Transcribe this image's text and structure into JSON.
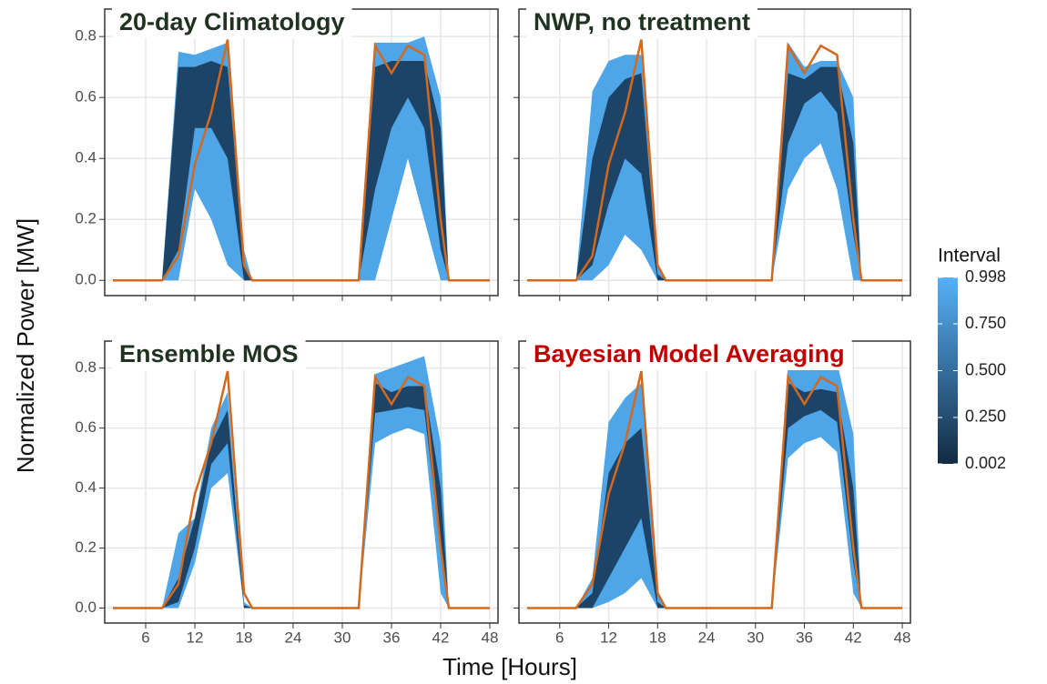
{
  "chart_data": {
    "type": "fan",
    "y_label": "Normalized Power [MW]",
    "x_label": "Time [Hours]",
    "x": [
      2,
      8,
      10,
      12,
      14,
      16,
      18,
      19,
      32,
      34,
      36,
      38,
      40,
      42,
      43,
      48
    ],
    "xlim": [
      1,
      49
    ],
    "xticks": [
      6,
      12,
      18,
      24,
      30,
      36,
      42,
      48
    ],
    "ylim": [
      -0.05,
      0.89
    ],
    "yticks": [
      {
        "value": 0,
        "label": "0.0"
      },
      {
        "value": 0.2,
        "label": "0.2"
      },
      {
        "value": 0.4,
        "label": "0.4"
      },
      {
        "value": 0.6,
        "label": "0.6"
      },
      {
        "value": 0.8,
        "label": "0.8"
      }
    ],
    "grid": true,
    "legend": {
      "title": "Interval",
      "colors": [
        "#132B43",
        "#56B1F7"
      ],
      "range": [
        0.002,
        0.998
      ],
      "ticks": [
        0.002,
        {
          "value": 0.25,
          "label": "0.250"
        },
        {
          "value": 0.5,
          "label": "0.500"
        },
        {
          "value": 0.75,
          "label": "0.750"
        },
        0.998
      ]
    },
    "panels": [
      {
        "title": "20-day Climatology",
        "title_color": "#1f3320",
        "bands": [
          {
            "color": "#4ea6e8",
            "upper": [
              0,
              0,
              0.75,
              0.74,
              0.76,
              0.78,
              0.1,
              0,
              0,
              0.78,
              0.78,
              0.78,
              0.8,
              0.6,
              0,
              0
            ],
            "lower": [
              0,
              0,
              0,
              0.3,
              0.2,
              0.05,
              0,
              0,
              0,
              0,
              0.2,
              0.4,
              0.2,
              0,
              0,
              0
            ]
          },
          {
            "color": "#1d4466",
            "upper": [
              0,
              0,
              0.7,
              0.7,
              0.72,
              0.7,
              0.05,
              0,
              0,
              0.7,
              0.72,
              0.72,
              0.72,
              0.5,
              0,
              0
            ],
            "lower": [
              0,
              0,
              0.1,
              0.5,
              0.5,
              0.4,
              0,
              0,
              0,
              0.3,
              0.5,
              0.6,
              0.5,
              0.1,
              0,
              0
            ]
          }
        ],
        "observed": {
          "color": "#d2691e",
          "values": [
            0,
            0,
            0.08,
            0.38,
            0.55,
            0.79,
            0.05,
            0,
            0,
            0.77,
            0.68,
            0.77,
            0.74,
            0.2,
            0,
            0
          ]
        }
      },
      {
        "title": "NWP, no treatment",
        "title_color": "#1f3320",
        "bands": [
          {
            "color": "#4ea6e8",
            "upper": [
              0,
              0,
              0.62,
              0.72,
              0.74,
              0.74,
              0.05,
              0,
              0,
              0.78,
              0.7,
              0.72,
              0.72,
              0.6,
              0,
              0
            ],
            "lower": [
              0,
              0,
              0,
              0.05,
              0.15,
              0.1,
              0,
              0,
              0,
              0.3,
              0.4,
              0.45,
              0.3,
              0,
              0,
              0
            ]
          },
          {
            "color": "#1d4466",
            "upper": [
              0,
              0,
              0.4,
              0.6,
              0.66,
              0.68,
              0.02,
              0,
              0,
              0.68,
              0.66,
              0.7,
              0.7,
              0.45,
              0,
              0
            ],
            "lower": [
              0,
              0,
              0.05,
              0.25,
              0.4,
              0.35,
              0,
              0,
              0,
              0.45,
              0.58,
              0.62,
              0.55,
              0.15,
              0,
              0
            ]
          }
        ],
        "observed": {
          "color": "#d2691e",
          "values": [
            0,
            0,
            0.08,
            0.38,
            0.55,
            0.79,
            0.05,
            0,
            0,
            0.77,
            0.68,
            0.77,
            0.74,
            0.2,
            0,
            0
          ]
        }
      },
      {
        "title": "Ensemble MOS",
        "title_color": "#1f3320",
        "bands": [
          {
            "color": "#4ea6e8",
            "upper": [
              0,
              0,
              0.25,
              0.3,
              0.6,
              0.72,
              0.02,
              0,
              0,
              0.78,
              0.8,
              0.82,
              0.84,
              0.55,
              0,
              0
            ],
            "lower": [
              0,
              0,
              0,
              0.15,
              0.4,
              0.45,
              0,
              0,
              0,
              0.55,
              0.58,
              0.6,
              0.58,
              0.05,
              0,
              0
            ]
          },
          {
            "color": "#1d4466",
            "upper": [
              0,
              0,
              0.1,
              0.3,
              0.55,
              0.66,
              0.01,
              0,
              0,
              0.75,
              0.72,
              0.74,
              0.74,
              0.4,
              0,
              0
            ],
            "lower": [
              0,
              0,
              0.02,
              0.2,
              0.48,
              0.55,
              0,
              0,
              0,
              0.65,
              0.66,
              0.67,
              0.66,
              0.2,
              0,
              0
            ]
          }
        ],
        "observed": {
          "color": "#d2691e",
          "values": [
            0,
            0,
            0.08,
            0.38,
            0.55,
            0.79,
            0.05,
            0,
            0,
            0.77,
            0.68,
            0.77,
            0.74,
            0.2,
            0,
            0
          ]
        }
      },
      {
        "title": "Bayesian Model Averaging",
        "title_color": "#c00000",
        "bands": [
          {
            "color": "#4ea6e8",
            "upper": [
              0,
              0,
              0.1,
              0.62,
              0.7,
              0.75,
              0.05,
              0,
              0,
              0.82,
              0.82,
              0.82,
              0.82,
              0.58,
              0,
              0
            ],
            "lower": [
              0,
              0,
              0,
              0.02,
              0.05,
              0.1,
              0,
              0,
              0,
              0.5,
              0.55,
              0.57,
              0.52,
              0.05,
              0,
              0
            ]
          },
          {
            "color": "#1d4466",
            "upper": [
              0,
              0,
              0.05,
              0.45,
              0.55,
              0.6,
              0.02,
              0,
              0,
              0.75,
              0.72,
              0.73,
              0.72,
              0.4,
              0,
              0
            ],
            "lower": [
              0,
              0,
              0,
              0.1,
              0.2,
              0.3,
              0,
              0,
              0,
              0.6,
              0.64,
              0.66,
              0.62,
              0.15,
              0,
              0
            ]
          }
        ],
        "observed": {
          "color": "#d2691e",
          "values": [
            0,
            0,
            0.08,
            0.38,
            0.55,
            0.79,
            0.05,
            0,
            0,
            0.77,
            0.68,
            0.77,
            0.74,
            0.2,
            0,
            0
          ]
        }
      }
    ]
  }
}
